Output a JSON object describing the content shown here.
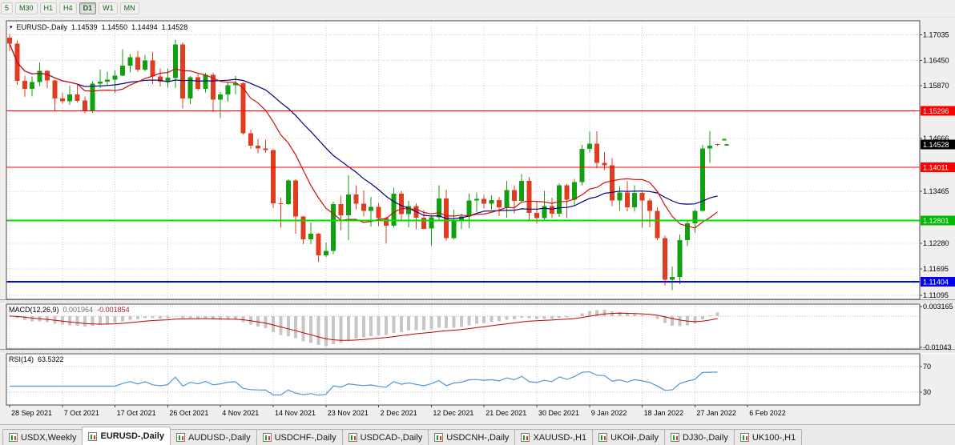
{
  "toolbar": {
    "buttons": [
      {
        "label": "5",
        "active": false
      },
      {
        "label": "M30",
        "active": false
      },
      {
        "label": "H1",
        "active": false
      },
      {
        "label": "H4",
        "active": false
      },
      {
        "label": "D1",
        "active": true
      },
      {
        "label": "W1",
        "active": false
      },
      {
        "label": "MN",
        "active": false
      }
    ]
  },
  "quote": {
    "symbol": "EURUSD-,Daily",
    "open": "1.14539",
    "high": "1.14550",
    "low": "1.14494",
    "close": "1.14528"
  },
  "indicators": {
    "macd": {
      "label": "MACD(12,26,9)",
      "main": "0.001964",
      "signal": "-0.001854",
      "params": [
        12,
        26,
        9
      ],
      "axis_labels": [
        "0.003165",
        "-0.01043"
      ]
    },
    "rsi": {
      "label": "RSI(14)",
      "value": "63.5322",
      "period": 14,
      "levels": [
        70,
        30
      ],
      "axis_labels": [
        "70",
        "30"
      ]
    }
  },
  "price_axis": {
    "labels": [
      "1.17035",
      "1.16450",
      "1.15870",
      "1.14666",
      "1.13465",
      "1.12280",
      "1.11695",
      "1.11095"
    ],
    "badges": [
      {
        "text": "1.15296",
        "price": 1.15296,
        "color": "#ff0000"
      },
      {
        "text": "1.14528",
        "price": 1.14528,
        "color": "#000000"
      },
      {
        "text": "1.14011",
        "price": 1.14011,
        "color": "#ff0000"
      },
      {
        "text": "1.12801",
        "price": 1.12801,
        "color": "#00bb00"
      },
      {
        "text": "1.11404",
        "price": 1.11404,
        "color": "#0000ee"
      }
    ]
  },
  "hlines": [
    {
      "price": 1.15296,
      "color": "#ff0000",
      "width": 1
    },
    {
      "price": 1.14011,
      "color": "#ff0000",
      "width": 1
    },
    {
      "price": 1.12801,
      "color": "#00dd00",
      "width": 2
    },
    {
      "price": 1.11404,
      "color": "#0000ff",
      "width": 2
    }
  ],
  "time_axis": {
    "labels": [
      "28 Sep 2021",
      "7 Oct 2021",
      "17 Oct 2021",
      "26 Oct 2021",
      "4 Nov 2021",
      "14 Nov 2021",
      "23 Nov 2021",
      "2 Dec 2021",
      "12 Dec 2021",
      "21 Dec 2021",
      "30 Dec 2021",
      "9 Jan 2022",
      "18 Jan 2022",
      "27 Jan 2022",
      "6 Feb 2022"
    ]
  },
  "tabs": [
    {
      "label": "USDX,Weekly",
      "active": false
    },
    {
      "label": "EURUSD-,Daily",
      "active": true
    },
    {
      "label": "AUDUSD-,Daily",
      "active": false
    },
    {
      "label": "USDCHF-,Daily",
      "active": false
    },
    {
      "label": "USDCAD-,Daily",
      "active": false
    },
    {
      "label": "USDCNH-,Daily",
      "active": false
    },
    {
      "label": "XAUUSD-,H1",
      "active": false
    },
    {
      "label": "UKOil-,Daily",
      "active": false
    },
    {
      "label": "DJ30-,Daily",
      "active": false
    },
    {
      "label": "UK100-,H1",
      "active": false
    }
  ],
  "chart_data": {
    "type": "candlestick",
    "symbol": "EURUSD-",
    "timeframe": "Daily",
    "y_range": [
      1.11,
      1.1735
    ],
    "macd_range": [
      -0.011,
      0.004
    ],
    "rsi_range": [
      10,
      90
    ],
    "overlays": [
      {
        "name": "ma-fast",
        "period": 10,
        "color": "#cf0e0e"
      },
      {
        "name": "ma-slow",
        "period": 21,
        "color": "#00007f"
      }
    ],
    "colors": {
      "up": "#10a010",
      "down": "#e03c20",
      "macd_hist": "#c6c6c6",
      "macd_signal": "#c00000",
      "rsi": "#4f96d8",
      "grid": "#cccccc"
    },
    "candles": [
      [
        1.1697,
        1.1705,
        1.1667,
        1.1683
      ],
      [
        1.1683,
        1.169,
        1.1589,
        1.1598
      ],
      [
        1.1598,
        1.161,
        1.1562,
        1.158
      ],
      [
        1.158,
        1.1608,
        1.1563,
        1.1595
      ],
      [
        1.1595,
        1.164,
        1.1586,
        1.1621
      ],
      [
        1.1621,
        1.1622,
        1.1581,
        1.1599
      ],
      [
        1.1599,
        1.16,
        1.1529,
        1.1558
      ],
      [
        1.1558,
        1.1572,
        1.1546,
        1.1552
      ],
      [
        1.1552,
        1.1586,
        1.1543,
        1.1567
      ],
      [
        1.1567,
        1.159,
        1.1549,
        1.1553
      ],
      [
        1.1553,
        1.1563,
        1.1524,
        1.153
      ],
      [
        1.153,
        1.1597,
        1.1525,
        1.1592
      ],
      [
        1.1592,
        1.1624,
        1.1582,
        1.1596
      ],
      [
        1.1596,
        1.1619,
        1.1588,
        1.1601
      ],
      [
        1.1601,
        1.1622,
        1.1571,
        1.161
      ],
      [
        1.161,
        1.167,
        1.1609,
        1.1633
      ],
      [
        1.1633,
        1.1659,
        1.1617,
        1.1652
      ],
      [
        1.1652,
        1.1667,
        1.1618,
        1.1624
      ],
      [
        1.1624,
        1.1657,
        1.162,
        1.1645
      ],
      [
        1.1645,
        1.1664,
        1.1591,
        1.1608
      ],
      [
        1.1608,
        1.1626,
        1.1585,
        1.1596
      ],
      [
        1.1596,
        1.1626,
        1.1583,
        1.1605
      ],
      [
        1.1605,
        1.1692,
        1.1582,
        1.1681
      ],
      [
        1.1681,
        1.1686,
        1.1535,
        1.1558
      ],
      [
        1.1558,
        1.1609,
        1.1545,
        1.1606
      ],
      [
        1.1606,
        1.1614,
        1.1575,
        1.158
      ],
      [
        1.158,
        1.1616,
        1.1572,
        1.1612
      ],
      [
        1.1612,
        1.1616,
        1.1528,
        1.1555
      ],
      [
        1.1555,
        1.1573,
        1.1513,
        1.1567
      ],
      [
        1.1567,
        1.1595,
        1.1551,
        1.1588
      ],
      [
        1.1588,
        1.1609,
        1.1567,
        1.1593
      ],
      [
        1.1593,
        1.1595,
        1.1476,
        1.1479
      ],
      [
        1.1479,
        1.1487,
        1.1443,
        1.145
      ],
      [
        1.145,
        1.1466,
        1.1433,
        1.1444
      ],
      [
        1.1444,
        1.1464,
        1.1434,
        1.144
      ],
      [
        1.144,
        1.1442,
        1.1309,
        1.1319
      ],
      [
        1.1319,
        1.1332,
        1.1263,
        1.1317
      ],
      [
        1.1317,
        1.1374,
        1.1314,
        1.1371
      ],
      [
        1.1371,
        1.1374,
        1.125,
        1.1289
      ],
      [
        1.1289,
        1.1291,
        1.1226,
        1.1237
      ],
      [
        1.1237,
        1.1275,
        1.1226,
        1.125
      ],
      [
        1.125,
        1.1251,
        1.1186,
        1.12
      ],
      [
        1.12,
        1.123,
        1.1196,
        1.121
      ],
      [
        1.121,
        1.1323,
        1.1203,
        1.1317
      ],
      [
        1.1317,
        1.1336,
        1.1258,
        1.1292
      ],
      [
        1.1292,
        1.1383,
        1.1235,
        1.1339
      ],
      [
        1.1339,
        1.136,
        1.1305,
        1.1318
      ],
      [
        1.1318,
        1.1348,
        1.1289,
        1.1302
      ],
      [
        1.1302,
        1.1334,
        1.1266,
        1.1311
      ],
      [
        1.1311,
        1.132,
        1.1267,
        1.1285
      ],
      [
        1.1285,
        1.1289,
        1.1227,
        1.1268
      ],
      [
        1.1268,
        1.1355,
        1.1263,
        1.1341
      ],
      [
        1.1341,
        1.1347,
        1.1278,
        1.1294
      ],
      [
        1.1294,
        1.1324,
        1.1264,
        1.1313
      ],
      [
        1.1313,
        1.1319,
        1.126,
        1.1286
      ],
      [
        1.1286,
        1.1303,
        1.126,
        1.1261
      ],
      [
        1.1261,
        1.1289,
        1.1222,
        1.1287
      ],
      [
        1.1287,
        1.136,
        1.1279,
        1.133
      ],
      [
        1.133,
        1.1349,
        1.1234,
        1.124
      ],
      [
        1.124,
        1.1304,
        1.1237,
        1.1278
      ],
      [
        1.1278,
        1.1295,
        1.1261,
        1.1289
      ],
      [
        1.1289,
        1.1342,
        1.1262,
        1.1325
      ],
      [
        1.1325,
        1.1344,
        1.1299,
        1.1329
      ],
      [
        1.1329,
        1.1338,
        1.1308,
        1.1318
      ],
      [
        1.1318,
        1.1337,
        1.1304,
        1.1326
      ],
      [
        1.1326,
        1.1334,
        1.129,
        1.131
      ],
      [
        1.131,
        1.137,
        1.1286,
        1.1349
      ],
      [
        1.1349,
        1.136,
        1.1295,
        1.1324
      ],
      [
        1.1324,
        1.1386,
        1.1321,
        1.137
      ],
      [
        1.137,
        1.1379,
        1.1279,
        1.1297
      ],
      [
        1.1297,
        1.1323,
        1.1272,
        1.1285
      ],
      [
        1.1285,
        1.1347,
        1.128,
        1.1313
      ],
      [
        1.1313,
        1.1332,
        1.1285,
        1.1295
      ],
      [
        1.1295,
        1.1365,
        1.1288,
        1.136
      ],
      [
        1.136,
        1.1363,
        1.1285,
        1.1327
      ],
      [
        1.1327,
        1.1375,
        1.1313,
        1.1367
      ],
      [
        1.1367,
        1.1452,
        1.136,
        1.1443
      ],
      [
        1.1443,
        1.1482,
        1.1435,
        1.1455
      ],
      [
        1.1455,
        1.1483,
        1.1398,
        1.1411
      ],
      [
        1.1411,
        1.1436,
        1.1395,
        1.1406
      ],
      [
        1.1406,
        1.1422,
        1.1313,
        1.1325
      ],
      [
        1.1325,
        1.1358,
        1.1302,
        1.1344
      ],
      [
        1.1344,
        1.1369,
        1.1301,
        1.131
      ],
      [
        1.131,
        1.136,
        1.13,
        1.1343
      ],
      [
        1.1343,
        1.1345,
        1.1262,
        1.1325
      ],
      [
        1.1325,
        1.133,
        1.1264,
        1.1302
      ],
      [
        1.1302,
        1.131,
        1.1235,
        1.124
      ],
      [
        1.124,
        1.1245,
        1.1131,
        1.1145
      ],
      [
        1.1145,
        1.1175,
        1.1121,
        1.1151
      ],
      [
        1.1151,
        1.1248,
        1.1135,
        1.1235
      ],
      [
        1.1235,
        1.1279,
        1.1221,
        1.1273
      ],
      [
        1.1273,
        1.1305,
        1.1251,
        1.1302
      ],
      [
        1.1302,
        1.1452,
        1.13,
        1.1444
      ],
      [
        1.1444,
        1.1484,
        1.1411,
        1.145
      ],
      [
        1.14539,
        1.1455,
        1.14494,
        1.14528
      ]
    ]
  }
}
